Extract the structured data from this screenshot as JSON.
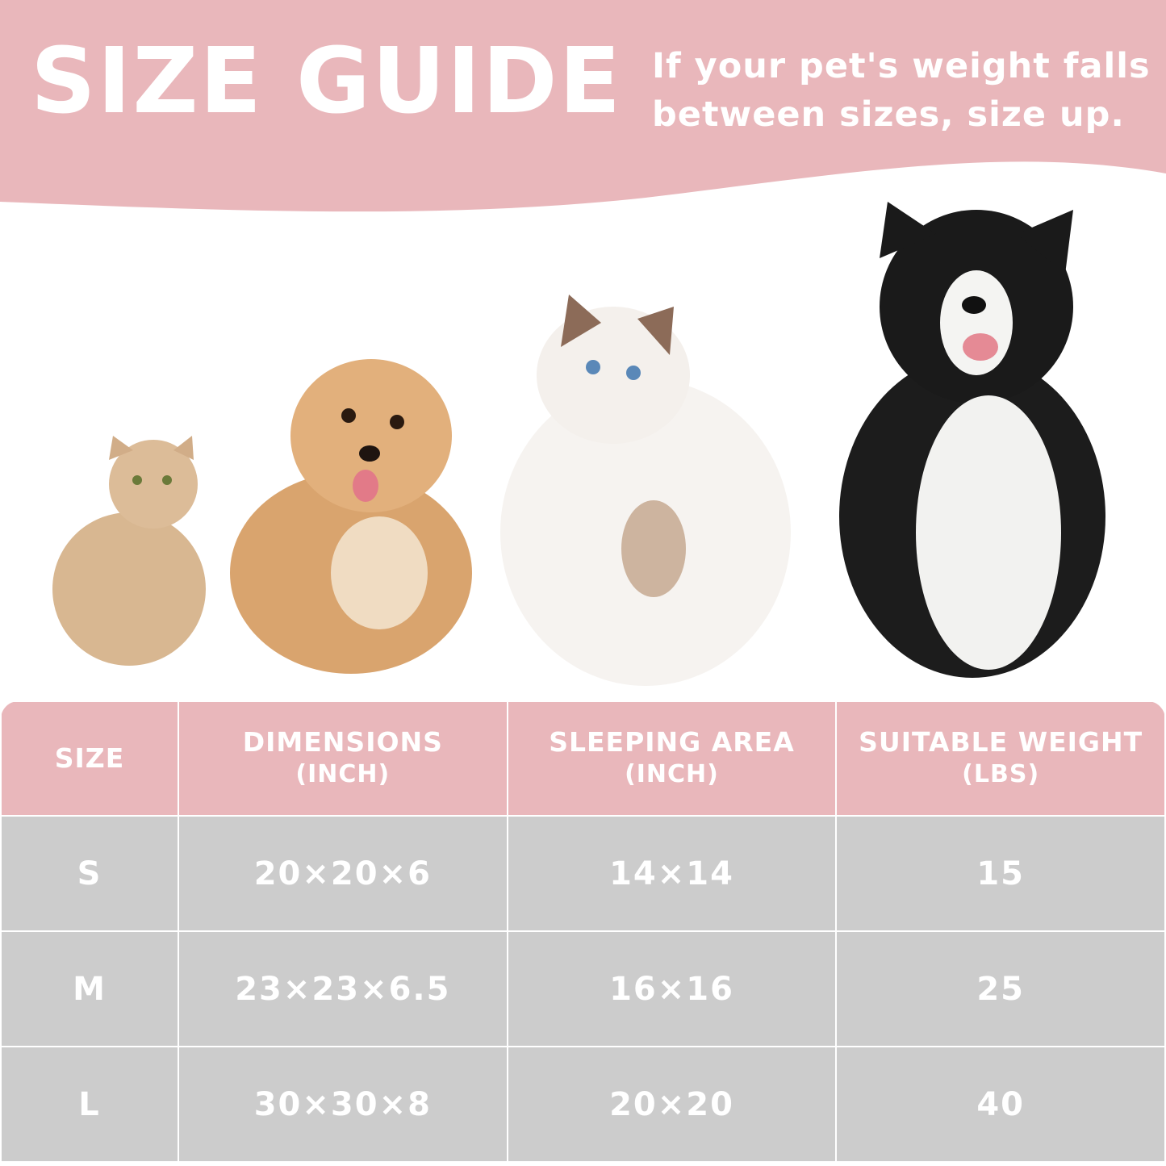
{
  "header": {
    "title": "SIZE GUIDE",
    "subtitle_line1": "If your pet's weight falls",
    "subtitle_line2": "between sizes, size up."
  },
  "colors": {
    "header_pink": "#e9b7bb",
    "row_gray": "#cccccc",
    "text": "#ffffff"
  },
  "pets": [
    "small-cat",
    "small-dog",
    "large-cat",
    "large-dog"
  ],
  "table": {
    "headers": [
      {
        "label": "SIZE",
        "unit": ""
      },
      {
        "label": "DIMENSIONS",
        "unit": "(INCH)"
      },
      {
        "label": "SLEEPING AREA",
        "unit": "(INCH)"
      },
      {
        "label": "SUITABLE WEIGHT",
        "unit": "(LBS)"
      }
    ],
    "rows": [
      [
        "S",
        "20×20×6",
        "14×14",
        "15"
      ],
      [
        "M",
        "23×23×6.5",
        "16×16",
        "25"
      ],
      [
        "L",
        "30×30×8",
        "20×20",
        "40"
      ]
    ]
  }
}
